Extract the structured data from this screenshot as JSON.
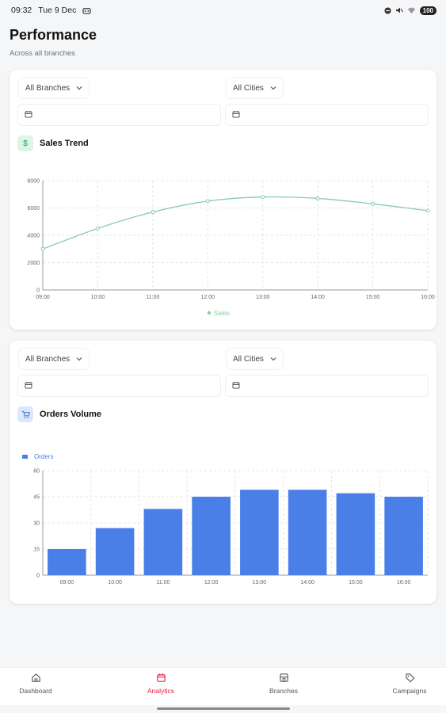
{
  "status_bar": {
    "time": "09:32",
    "date": "Tue 9 Dec",
    "battery": "100"
  },
  "header": {
    "title": "Performance",
    "subtitle": "Across all branches"
  },
  "sales_card": {
    "branch_filter": "All Branches",
    "city_filter": "All Cities",
    "title": "Sales Trend",
    "icon_glyph": "$"
  },
  "orders_card": {
    "branch_filter": "All Branches",
    "city_filter": "All Cities",
    "title": "Orders Volume"
  },
  "nav": {
    "items": [
      {
        "label": "Dashboard",
        "icon": "home-icon"
      },
      {
        "label": "Analytics",
        "icon": "calendar-icon"
      },
      {
        "label": "Branches",
        "icon": "store-icon"
      },
      {
        "label": "Campaigns",
        "icon": "tag-icon"
      }
    ],
    "active": "Analytics"
  },
  "colors": {
    "sales_line": "#86cfa5",
    "orders_bar": "#4a7fe8",
    "active_nav": "#e11d48"
  },
  "chart_data": [
    {
      "type": "line",
      "x": [
        "09:00",
        "10:00",
        "11:00",
        "12:00",
        "13:00",
        "14:00",
        "15:00",
        "16:00"
      ],
      "series": [
        {
          "name": "Sales",
          "values": [
            3000,
            4500,
            5700,
            6500,
            6800,
            6700,
            6300,
            5800
          ]
        }
      ],
      "ylim": [
        0,
        8000
      ],
      "yticks": [
        "0",
        "2000",
        "4000",
        "6000",
        "8000"
      ],
      "grid": true,
      "legend": "bottom-center"
    },
    {
      "type": "bar",
      "categories": [
        "09:00",
        "10:00",
        "11:00",
        "12:00",
        "13:00",
        "14:00",
        "15:00",
        "16:00"
      ],
      "series": [
        {
          "name": "Orders",
          "values": [
            15,
            27,
            38,
            45,
            49,
            49,
            47,
            45
          ]
        }
      ],
      "ylim": [
        0,
        60
      ],
      "yticks": [
        "0",
        "15",
        "30",
        "45",
        "60"
      ],
      "grid": true,
      "legend": "top-left"
    }
  ]
}
